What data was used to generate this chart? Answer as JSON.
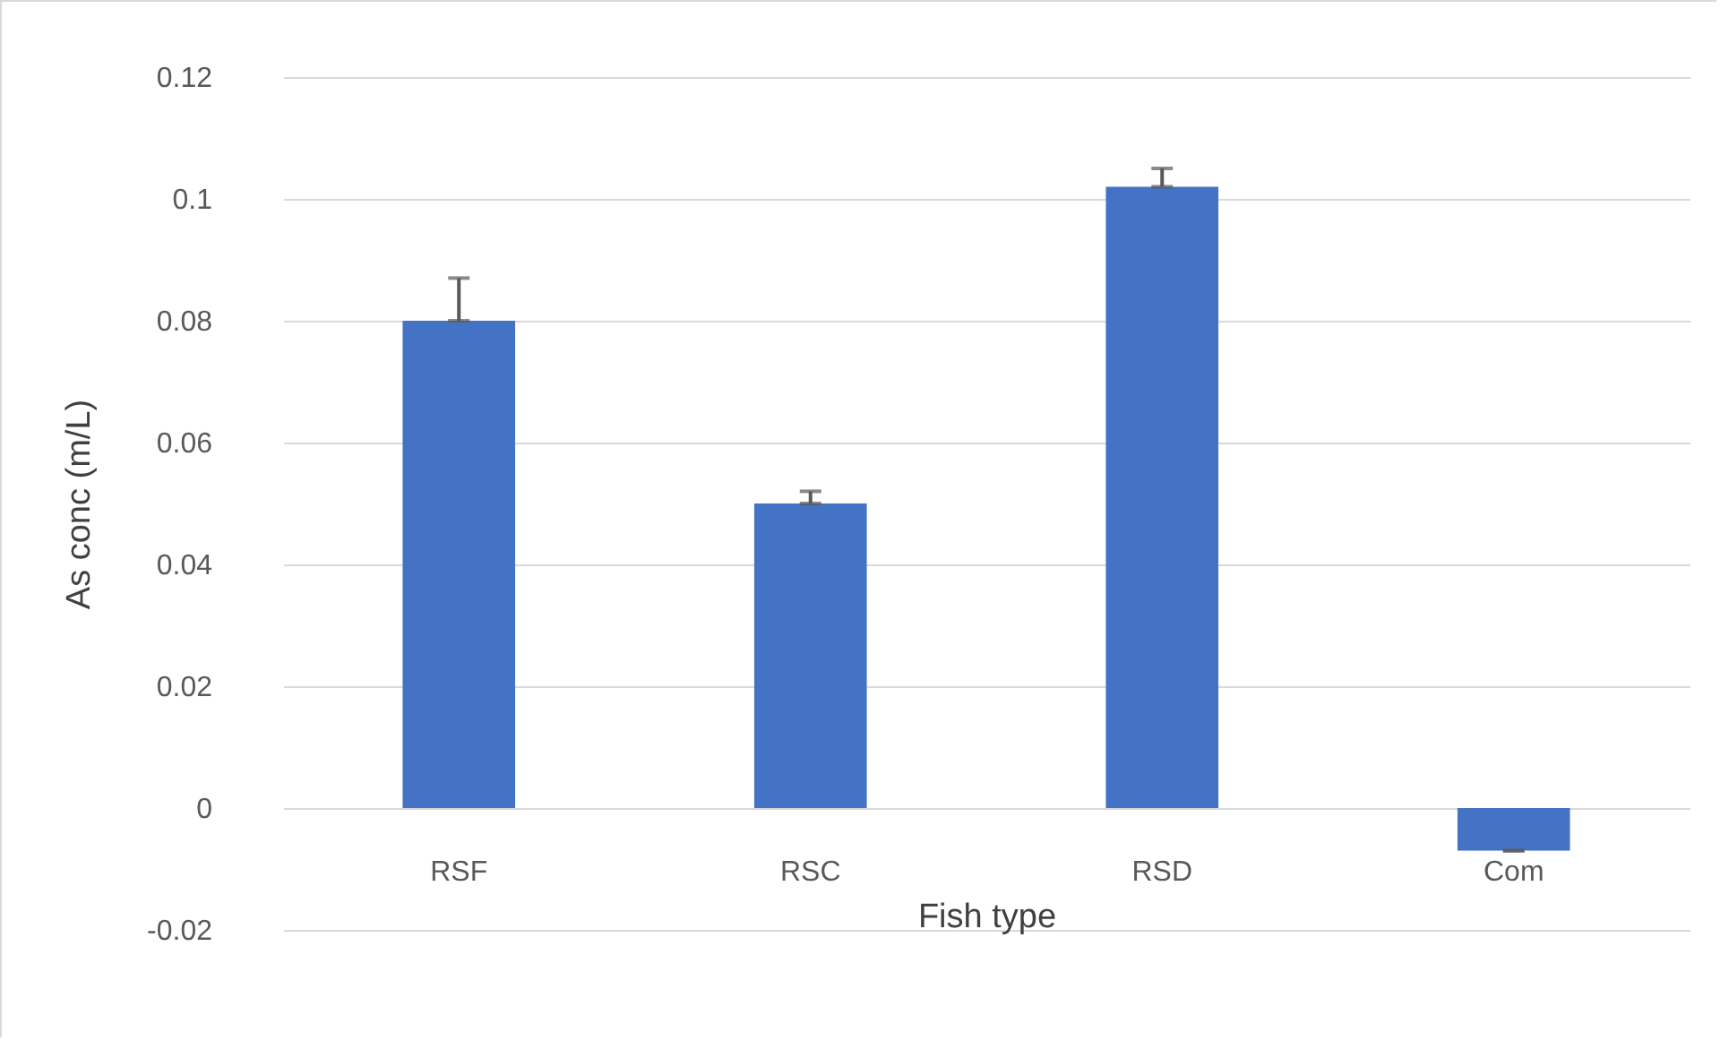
{
  "chart_data": {
    "type": "bar",
    "xlabel": "Fish type",
    "ylabel": "As conc (m/L)",
    "categories": [
      "RSF",
      "RSC",
      "RSD",
      "Com"
    ],
    "values": [
      0.08,
      0.05,
      0.102,
      -0.007
    ],
    "errors": [
      [
        0.08,
        0.087
      ],
      [
        0.05,
        0.052
      ],
      [
        0.102,
        0.105
      ],
      [
        -0.007,
        -0.007
      ]
    ],
    "color": "#4472c4",
    "ylim": [
      -0.02,
      0.12
    ],
    "yticks": [
      -0.02,
      0,
      0.02,
      0.04,
      0.06,
      0.08,
      0.1,
      0.12
    ],
    "grid": "y"
  }
}
